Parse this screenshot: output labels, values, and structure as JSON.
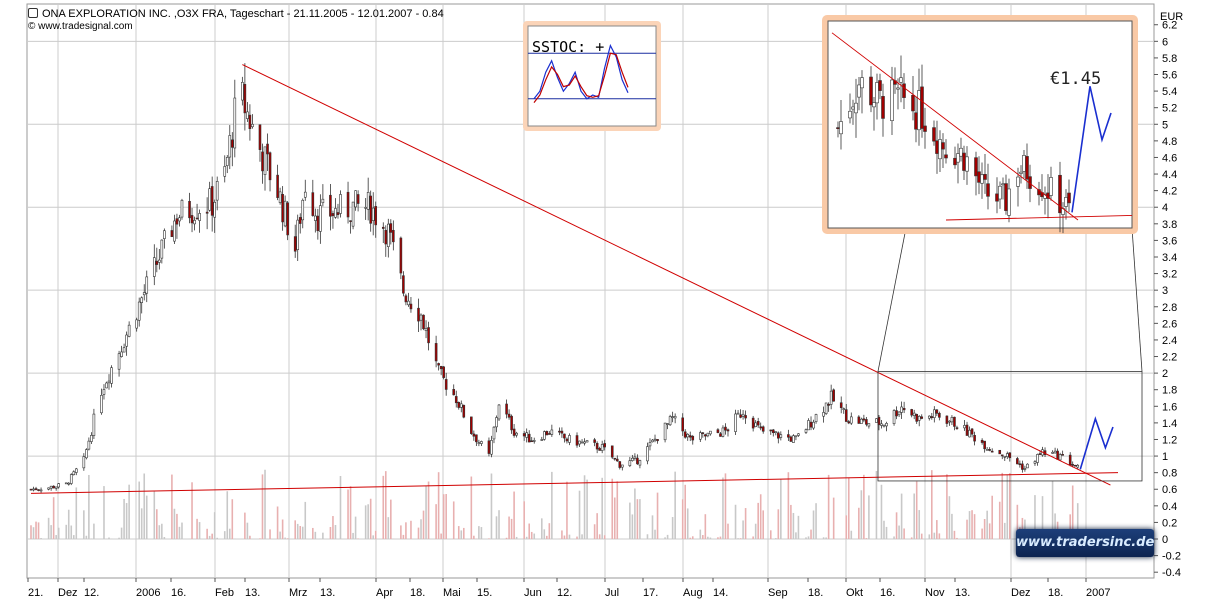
{
  "header": {
    "title": "ONA EXPLORATION INC. ,O3X FRA, Tageschart - 21.11.2005 - 12.01.2007 - 0.84",
    "source": "© www.tradesignal.com"
  },
  "watermark": "www.tradersinc.de",
  "colors": {
    "trendline": "#d00000",
    "projection": "#1a2fd0",
    "grid": "#cccccc",
    "bull_candle": "#ffffff",
    "bear_candle": "#a00000",
    "volume": "#c8c8c8",
    "inset_glow": "#f4a070"
  },
  "chart_data": [
    {
      "type": "candlestick",
      "title": "ONA EXPLORATION INC. ,O3X FRA, Tageschart - 21.11.2005 - 12.01.2007 - 0.84",
      "ylabel": "EUR",
      "ylim": [
        -0.45,
        6.5
      ],
      "y_ticks": [
        -0.4,
        -0.2,
        0,
        0.2,
        0.4,
        0.6,
        0.8,
        1,
        1.2,
        1.4,
        1.6,
        1.8,
        2,
        2.2,
        2.4,
        2.6,
        2.8,
        3,
        3.2,
        3.4,
        3.6,
        3.8,
        4,
        4.2,
        4.4,
        4.6,
        4.8,
        5,
        5.2,
        5.4,
        5.6,
        5.8,
        6,
        6.2
      ],
      "x_ticks": [
        "21.",
        "Dez",
        "12.",
        "2006",
        "16.",
        "Feb",
        "13.",
        "Mrz",
        "13.",
        "Apr",
        "18.",
        "Mai",
        "15.",
        "Jun",
        "12.",
        "Jul",
        "17.",
        "Aug",
        "14.",
        "Sep",
        "18.",
        "Okt",
        "16.",
        "Nov",
        "13.",
        "Dez",
        "18.",
        "2007"
      ],
      "grid": true,
      "price_path": [
        [
          "2005-11-21",
          0.6
        ],
        [
          "2005-11-28",
          0.62
        ],
        [
          "2005-12-05",
          0.66
        ],
        [
          "2005-12-12",
          0.95
        ],
        [
          "2005-12-19",
          1.8
        ],
        [
          "2005-12-28",
          2.4
        ],
        [
          "2006-01-04",
          2.9
        ],
        [
          "2006-01-11",
          3.4
        ],
        [
          "2006-01-18",
          3.9
        ],
        [
          "2006-01-25",
          4.0
        ],
        [
          "2006-02-01",
          4.05
        ],
        [
          "2006-02-06",
          4.4
        ],
        [
          "2006-02-10",
          5.1
        ],
        [
          "2006-02-13",
          5.3
        ],
        [
          "2006-02-20",
          4.7
        ],
        [
          "2006-02-27",
          4.2
        ],
        [
          "2006-03-06",
          3.5
        ],
        [
          "2006-03-10",
          4.3
        ],
        [
          "2006-03-15",
          3.9
        ],
        [
          "2006-03-22",
          3.95
        ],
        [
          "2006-03-29",
          4.0
        ],
        [
          "2006-04-05",
          4.0
        ],
        [
          "2006-04-12",
          3.7
        ],
        [
          "2006-04-18",
          3.0
        ],
        [
          "2006-04-25",
          2.7
        ],
        [
          "2006-05-02",
          2.0
        ],
        [
          "2006-05-09",
          1.7
        ],
        [
          "2006-05-15",
          1.3
        ],
        [
          "2006-05-22",
          1.0
        ],
        [
          "2006-05-26",
          1.65
        ],
        [
          "2006-06-01",
          1.3
        ],
        [
          "2006-06-08",
          1.2
        ],
        [
          "2006-06-15",
          1.3
        ],
        [
          "2006-06-22",
          1.2
        ],
        [
          "2006-06-29",
          1.15
        ],
        [
          "2006-07-06",
          1.1
        ],
        [
          "2006-07-13",
          0.9
        ],
        [
          "2006-07-20",
          0.95
        ],
        [
          "2006-07-27",
          1.2
        ],
        [
          "2006-08-03",
          1.45
        ],
        [
          "2006-08-10",
          1.2
        ],
        [
          "2006-08-17",
          1.25
        ],
        [
          "2006-08-24",
          1.3
        ],
        [
          "2006-08-31",
          1.55
        ],
        [
          "2006-09-07",
          1.3
        ],
        [
          "2006-09-14",
          1.25
        ],
        [
          "2006-09-21",
          1.2
        ],
        [
          "2006-09-28",
          1.45
        ],
        [
          "2006-10-05",
          1.7
        ],
        [
          "2006-10-12",
          1.45
        ],
        [
          "2006-10-19",
          1.4
        ],
        [
          "2006-10-26",
          1.4
        ],
        [
          "2006-11-02",
          1.6
        ],
        [
          "2006-11-09",
          1.45
        ],
        [
          "2006-11-16",
          1.5
        ],
        [
          "2006-11-23",
          1.4
        ],
        [
          "2006-11-30",
          1.25
        ],
        [
          "2006-12-07",
          1.1
        ],
        [
          "2006-12-14",
          1.0
        ],
        [
          "2006-12-21",
          0.85
        ],
        [
          "2006-12-28",
          1.05
        ],
        [
          "2007-01-04",
          1.0
        ],
        [
          "2007-01-12",
          0.84
        ]
      ],
      "projection": [
        [
          "2007-01-12",
          0.84
        ],
        [
          "2007-01-18",
          1.45
        ],
        [
          "2007-01-22",
          1.1
        ],
        [
          "2007-01-25",
          1.35
        ]
      ],
      "trendlines": [
        {
          "from": [
            "2006-02-13",
            5.72
          ],
          "to": [
            "2007-01-24",
            0.65
          ]
        },
        {
          "from": [
            "2005-11-21",
            0.55
          ],
          "to": [
            "2007-01-27",
            0.8
          ]
        }
      ],
      "volume_ylim": [
        0,
        1.0
      ]
    },
    {
      "type": "line",
      "title": "SSTOC: +",
      "series": [
        {
          "values": [
            20,
            30,
            55,
            70,
            48,
            30,
            40,
            55,
            30,
            20,
            25,
            22,
            60,
            90,
            75,
            45,
            28
          ]
        },
        {
          "values": [
            15,
            25,
            45,
            62,
            52,
            36,
            38,
            50,
            36,
            24,
            22,
            24,
            50,
            80,
            78,
            55,
            35
          ]
        }
      ],
      "ylim": [
        0,
        100
      ],
      "levels": [
        20,
        80
      ]
    },
    {
      "type": "candlestick",
      "title": "€1.45",
      "y_ticks": [],
      "price_path": [
        [
          "2006-10-26",
          5.2
        ],
        [
          "2006-11-02",
          5.8
        ],
        [
          "2006-11-09",
          5.55
        ],
        [
          "2006-11-16",
          5.6
        ],
        [
          "2006-11-23",
          5.4
        ],
        [
          "2006-11-30",
          5.0
        ],
        [
          "2006-12-07",
          4.85
        ],
        [
          "2006-12-14",
          4.35
        ],
        [
          "2006-12-21",
          4.25
        ],
        [
          "2006-12-24",
          4.7
        ],
        [
          "2006-12-28",
          4.65
        ],
        [
          "2007-01-04",
          4.4
        ],
        [
          "2007-01-12",
          4.1
        ]
      ],
      "projection": [
        [
          "2007-01-12",
          4.1
        ],
        [
          "2007-01-18",
          5.75
        ],
        [
          "2007-01-22",
          5.05
        ],
        [
          "2007-01-25",
          5.4
        ]
      ],
      "ylim": [
        4.0,
        6.5
      ]
    }
  ]
}
